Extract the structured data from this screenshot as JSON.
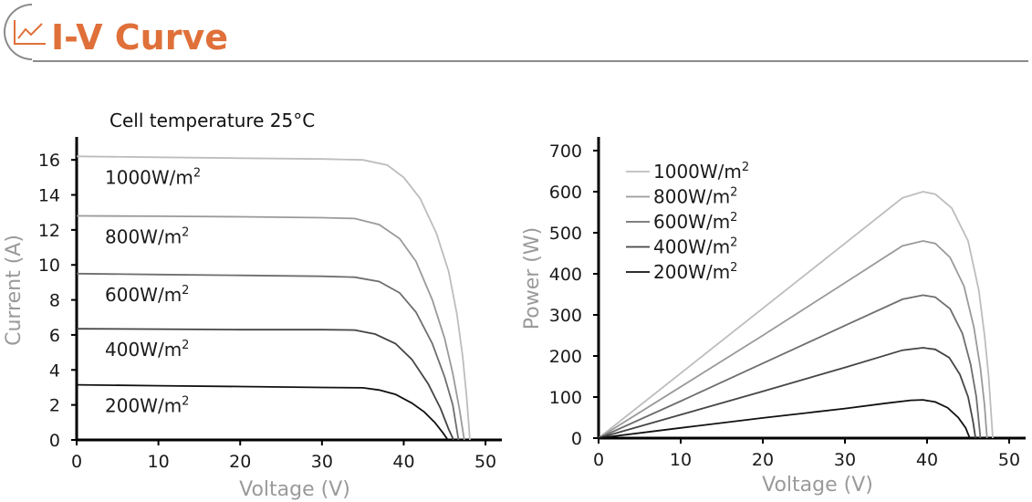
{
  "header": {
    "title": "I-V Curve",
    "icon": "line-chart-icon",
    "title_color": "#e0703a"
  },
  "chart_data": [
    {
      "type": "line",
      "id": "iv",
      "annotation": "Cell temperature 25°C",
      "xlabel": "Voltage (V)",
      "ylabel": "Current (A)",
      "xlim": [
        0,
        52
      ],
      "ylim": [
        0,
        17
      ],
      "xticks": [
        0,
        10,
        20,
        30,
        40,
        50
      ],
      "yticks": [
        0,
        2,
        4,
        6,
        8,
        10,
        12,
        14,
        16
      ],
      "grid": false,
      "series": [
        {
          "name": "1000W/m",
          "superscript": "2",
          "color": "#bdbdbd",
          "points": [
            [
              0,
              16.2
            ],
            [
              10,
              16.15
            ],
            [
              20,
              16.1
            ],
            [
              30,
              16.05
            ],
            [
              35,
              16.0
            ],
            [
              38,
              15.7
            ],
            [
              40,
              15.0
            ],
            [
              42,
              13.8
            ],
            [
              44,
              11.8
            ],
            [
              45.5,
              9.6
            ],
            [
              46.5,
              7.2
            ],
            [
              47.2,
              4.8
            ],
            [
              47.7,
              2.4
            ],
            [
              48.1,
              0
            ]
          ]
        },
        {
          "name": "800W/m",
          "superscript": "2",
          "color": "#9a9a9a",
          "points": [
            [
              0,
              12.8
            ],
            [
              10,
              12.78
            ],
            [
              20,
              12.75
            ],
            [
              30,
              12.7
            ],
            [
              34,
              12.65
            ],
            [
              37,
              12.3
            ],
            [
              39.5,
              11.5
            ],
            [
              41.5,
              10.2
            ],
            [
              43.5,
              8.0
            ],
            [
              45,
              5.8
            ],
            [
              46,
              3.8
            ],
            [
              46.8,
              1.8
            ],
            [
              47.4,
              0
            ]
          ]
        },
        {
          "name": "600W/m",
          "superscript": "2",
          "color": "#6e6e6e",
          "points": [
            [
              0,
              9.5
            ],
            [
              10,
              9.45
            ],
            [
              20,
              9.4
            ],
            [
              30,
              9.35
            ],
            [
              34,
              9.3
            ],
            [
              37,
              9.05
            ],
            [
              39.5,
              8.4
            ],
            [
              41.5,
              7.3
            ],
            [
              43.5,
              5.5
            ],
            [
              45,
              3.6
            ],
            [
              46,
              2.0
            ],
            [
              46.7,
              0
            ]
          ]
        },
        {
          "name": "400W/m",
          "superscript": "2",
          "color": "#454545",
          "points": [
            [
              0,
              6.35
            ],
            [
              10,
              6.33
            ],
            [
              20,
              6.3
            ],
            [
              30,
              6.3
            ],
            [
              34,
              6.28
            ],
            [
              36.5,
              6.05
            ],
            [
              39,
              5.5
            ],
            [
              41,
              4.6
            ],
            [
              43,
              3.2
            ],
            [
              44.5,
              1.8
            ],
            [
              45.5,
              0.6
            ],
            [
              46.1,
              0
            ]
          ]
        },
        {
          "name": "200W/m",
          "superscript": "2",
          "color": "#111111",
          "points": [
            [
              0,
              3.15
            ],
            [
              10,
              3.1
            ],
            [
              20,
              3.05
            ],
            [
              30,
              3.0
            ],
            [
              35,
              2.98
            ],
            [
              37,
              2.85
            ],
            [
              39,
              2.6
            ],
            [
              41,
              2.1
            ],
            [
              42.5,
              1.6
            ],
            [
              43.8,
              1.0
            ],
            [
              44.8,
              0.4
            ],
            [
              45.4,
              0
            ]
          ]
        }
      ]
    },
    {
      "type": "line",
      "id": "pv",
      "xlabel": "Voltage (V)",
      "ylabel": "Power (W)",
      "xlim": [
        0,
        52
      ],
      "ylim": [
        0,
        720
      ],
      "xticks": [
        0,
        10,
        20,
        30,
        40,
        50
      ],
      "yticks": [
        0,
        100,
        200,
        300,
        400,
        500,
        600,
        700
      ],
      "grid": false,
      "legend_position": "top-left",
      "series": [
        {
          "name": "1000W/m",
          "superscript": "2",
          "color": "#bdbdbd",
          "points": [
            [
              0,
              0
            ],
            [
              10,
              158
            ],
            [
              20,
              316
            ],
            [
              30,
              474
            ],
            [
              37,
              585
            ],
            [
              39.5,
              600
            ],
            [
              41,
              594
            ],
            [
              43,
              560
            ],
            [
              45,
              480
            ],
            [
              46.3,
              360
            ],
            [
              47,
              250
            ],
            [
              47.5,
              150
            ],
            [
              47.8,
              60
            ],
            [
              48,
              0
            ]
          ]
        },
        {
          "name": "800W/m",
          "superscript": "2",
          "color": "#9a9a9a",
          "points": [
            [
              0,
              0
            ],
            [
              10,
              125
            ],
            [
              20,
              250
            ],
            [
              30,
              378
            ],
            [
              37,
              468
            ],
            [
              39.5,
              480
            ],
            [
              41,
              474
            ],
            [
              42.8,
              440
            ],
            [
              44.5,
              370
            ],
            [
              45.7,
              270
            ],
            [
              46.5,
              170
            ],
            [
              47,
              80
            ],
            [
              47.3,
              0
            ]
          ]
        },
        {
          "name": "600W/m",
          "superscript": "2",
          "color": "#6e6e6e",
          "points": [
            [
              0,
              0
            ],
            [
              10,
              90
            ],
            [
              20,
              182
            ],
            [
              30,
              274
            ],
            [
              37,
              338
            ],
            [
              39.5,
              348
            ],
            [
              41,
              343
            ],
            [
              42.8,
              315
            ],
            [
              44.3,
              255
            ],
            [
              45.3,
              180
            ],
            [
              46,
              100
            ],
            [
              46.5,
              0
            ]
          ]
        },
        {
          "name": "400W/m",
          "superscript": "2",
          "color": "#454545",
          "points": [
            [
              0,
              0
            ],
            [
              10,
              57
            ],
            [
              20,
              114
            ],
            [
              30,
              172
            ],
            [
              37,
              214
            ],
            [
              39.5,
              220
            ],
            [
              41,
              216
            ],
            [
              42.7,
              196
            ],
            [
              44,
              155
            ],
            [
              45,
              100
            ],
            [
              45.6,
              40
            ],
            [
              45.9,
              0
            ]
          ]
        },
        {
          "name": "200W/m",
          "superscript": "2",
          "color": "#111111",
          "points": [
            [
              0,
              0
            ],
            [
              10,
              25
            ],
            [
              20,
              49
            ],
            [
              30,
              72
            ],
            [
              35,
              85
            ],
            [
              38,
              92
            ],
            [
              39.5,
              93
            ],
            [
              41,
              88
            ],
            [
              42.5,
              74
            ],
            [
              43.8,
              50
            ],
            [
              44.7,
              25
            ],
            [
              45.2,
              0
            ]
          ]
        }
      ]
    }
  ]
}
